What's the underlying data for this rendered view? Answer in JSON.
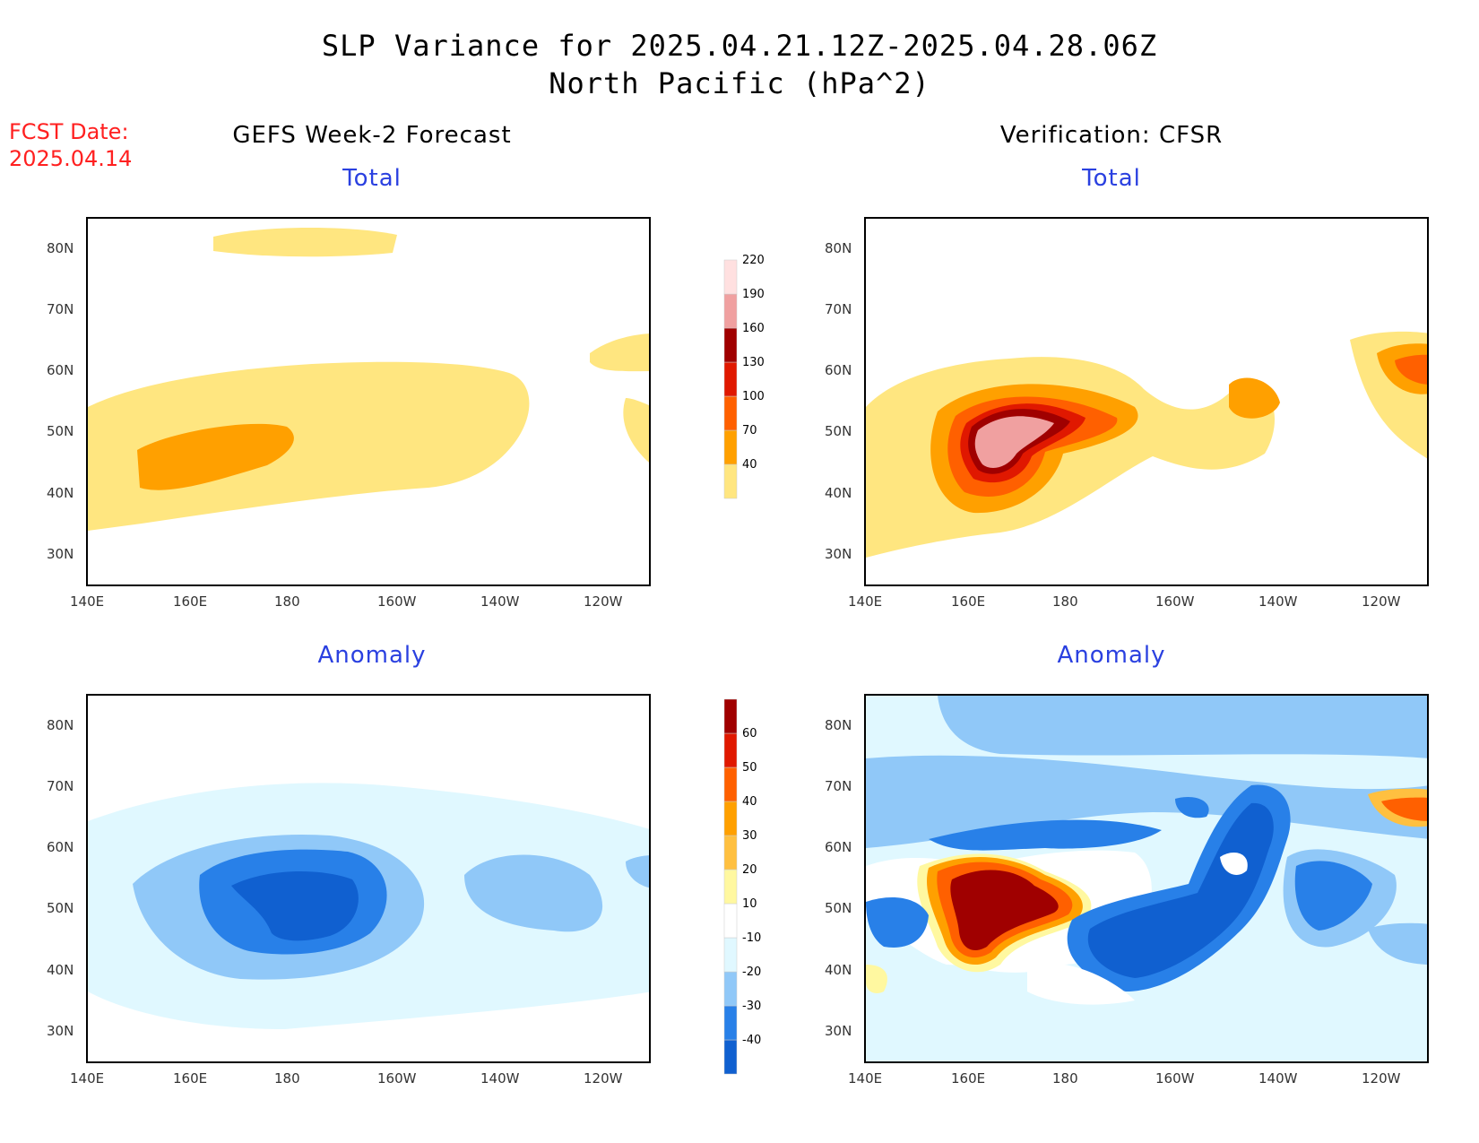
{
  "header": {
    "title_line1": "SLP Variance for 2025.04.21.12Z-2025.04.28.06Z",
    "title_line2": "North Pacific (hPa^2)"
  },
  "forecast_date": {
    "label": "FCST Date:",
    "value": "2025.04.14"
  },
  "columns": {
    "left": "GEFS Week-2 Forecast",
    "right": "Verification: CFSR"
  },
  "panels": {
    "top_left_title": "Total",
    "top_right_title": "Total",
    "bottom_left_title": "Anomaly",
    "bottom_right_title": "Anomaly"
  },
  "axes": {
    "lat_labels": [
      "80N",
      "70N",
      "60N",
      "50N",
      "40N",
      "30N"
    ],
    "lon_labels": [
      "140E",
      "160E",
      "180",
      "160W",
      "140W",
      "120W"
    ]
  },
  "colorbars": {
    "total": {
      "levels": [
        "40",
        "70",
        "100",
        "130",
        "160",
        "190",
        "220"
      ],
      "colors": [
        "#ffe680",
        "#ffa000",
        "#ff6000",
        "#e01800",
        "#a00000",
        "#f0a0a0",
        "#ffe0e0"
      ]
    },
    "anomaly": {
      "levels": [
        "-40",
        "-30",
        "-20",
        "-10",
        "10",
        "20",
        "30",
        "40",
        "50",
        "60"
      ],
      "colors": [
        "#1060d0",
        "#2880e8",
        "#90c8f8",
        "#e0f8ff",
        "#ffffff",
        "#fff8a0",
        "#ffc040",
        "#ffa000",
        "#ff6000",
        "#e01800",
        "#a00000"
      ]
    }
  },
  "chart_data": [
    {
      "type": "heatmap",
      "title": "Total",
      "series": "GEFS Week-2 Forecast",
      "x_range": [
        "140E",
        "110W"
      ],
      "y_range": [
        "25N",
        "85N"
      ],
      "units": "hPa^2"
    },
    {
      "type": "heatmap",
      "title": "Total",
      "series": "Verification: CFSR",
      "x_range": [
        "140E",
        "110W"
      ],
      "y_range": [
        "25N",
        "85N"
      ],
      "units": "hPa^2"
    },
    {
      "type": "heatmap",
      "title": "Anomaly",
      "series": "GEFS Week-2 Forecast",
      "x_range": [
        "140E",
        "110W"
      ],
      "y_range": [
        "25N",
        "85N"
      ],
      "units": "hPa^2"
    },
    {
      "type": "heatmap",
      "title": "Anomaly",
      "series": "Verification: CFSR",
      "x_range": [
        "140E",
        "110W"
      ],
      "y_range": [
        "25N",
        "85N"
      ],
      "units": "hPa^2"
    }
  ]
}
